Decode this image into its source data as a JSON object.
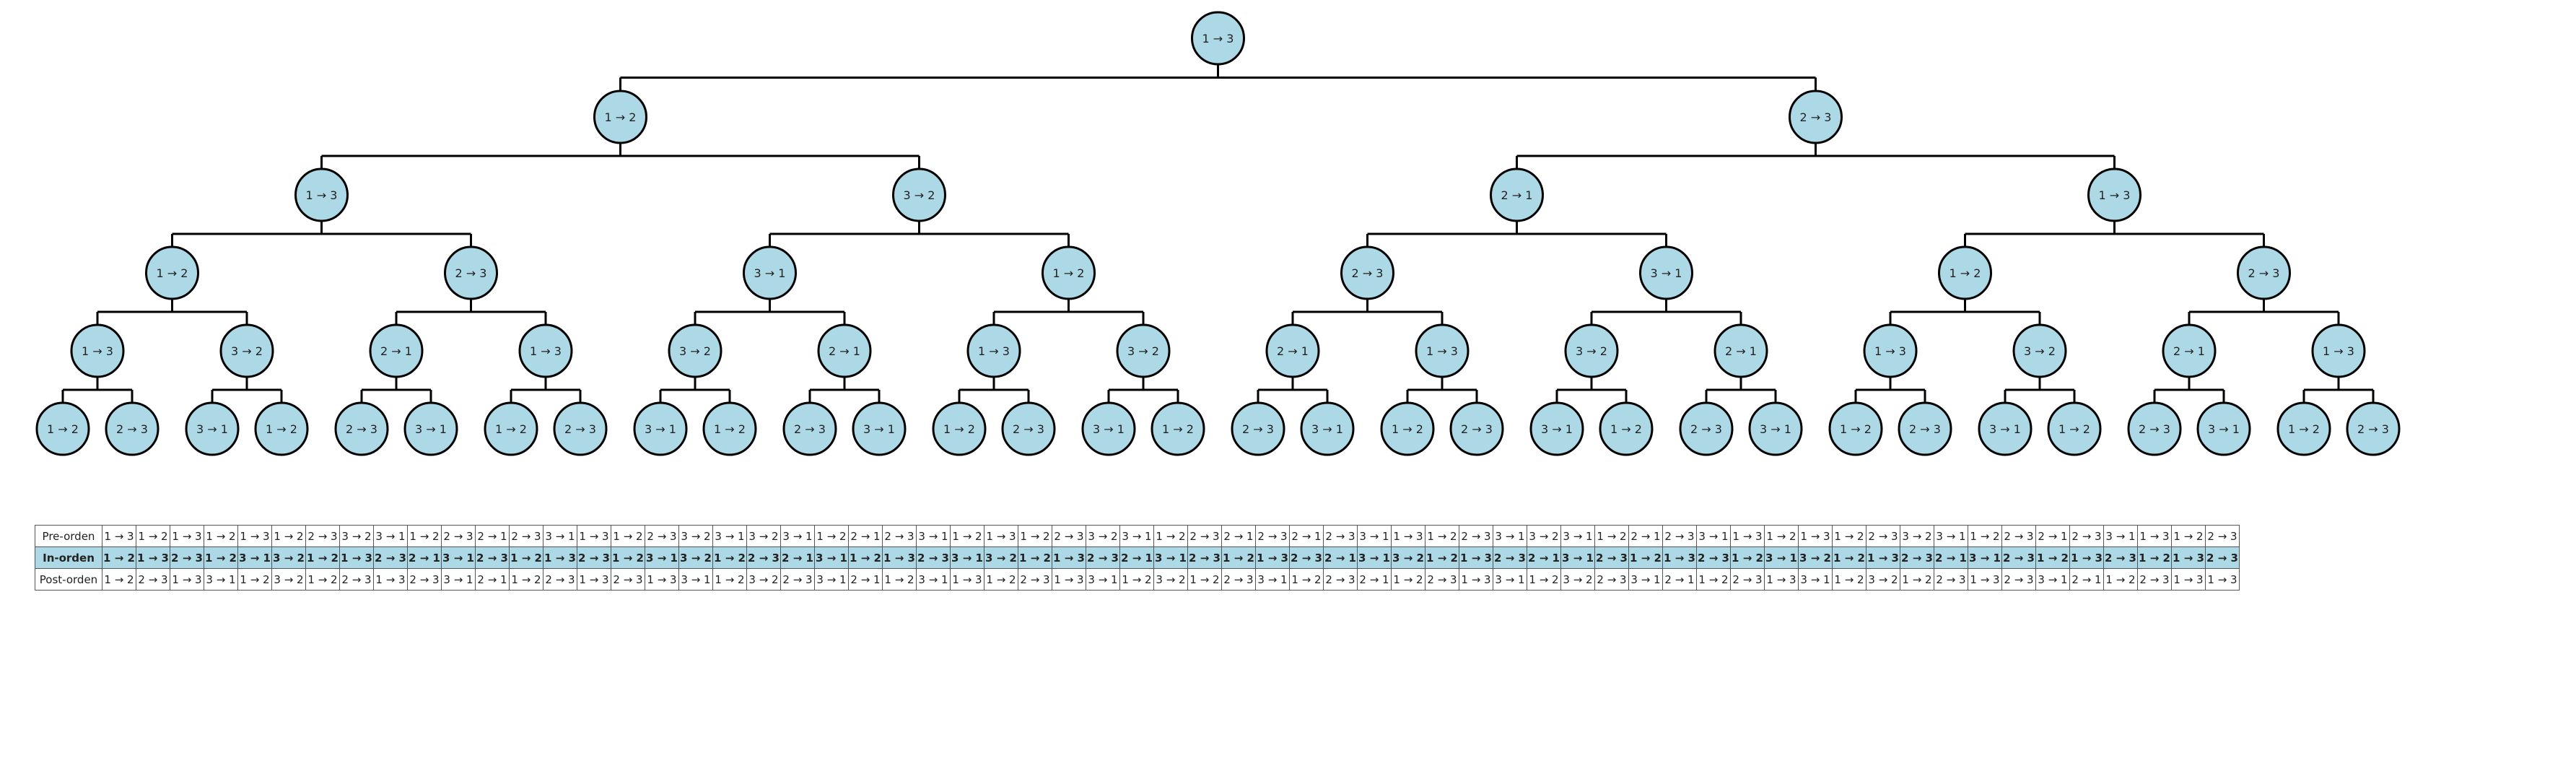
{
  "tree": {
    "root": "1 → 3",
    "levels": [
      [
        "1 → 3"
      ],
      [
        "1 → 2",
        "2 → 3"
      ],
      [
        "1 → 3",
        "3 → 2",
        "2 → 1",
        "1 → 3"
      ],
      [
        "1 → 2",
        "2 → 3",
        "3 → 1",
        "1 → 2",
        "2 → 3",
        "3 → 1",
        "1 → 2",
        "2 → 3"
      ],
      [
        "1 → 3",
        "3 → 2",
        "2 → 1",
        "1 → 3",
        "3 → 2",
        "2 → 1",
        "1 → 3",
        "3 → 2",
        "2 → 1",
        "1 → 3",
        "3 → 2",
        "2 → 1",
        "1 → 3",
        "3 → 2",
        "2 → 1",
        "1 → 3"
      ],
      [
        "1 → 2",
        "2 → 3",
        "3 → 1",
        "1 → 2",
        "2 → 3",
        "3 → 1",
        "1 → 2",
        "2 → 3",
        "3 → 1",
        "1 → 2",
        "2 → 3",
        "3 → 1",
        "1 → 2",
        "2 → 3",
        "3 → 1",
        "1 → 2",
        "2 → 3",
        "3 → 1",
        "1 → 2",
        "2 → 3",
        "3 → 1",
        "1 → 2",
        "2 → 3",
        "3 → 1",
        "1 → 2",
        "2 → 3",
        "3 → 1",
        "1 → 2",
        "2 → 3",
        "3 → 1",
        "1 → 2",
        "2 → 3"
      ]
    ]
  },
  "table": {
    "rows": [
      {
        "label": "Pre-orden",
        "cells": [
          "1 → 3",
          "1 → 2",
          "1 → 3",
          "1 → 2",
          "1 → 3",
          "1 → 2",
          "2 → 3",
          "3 → 2",
          "3 → 1",
          "1 → 2",
          "2 → 3",
          "2 → 1",
          "2 → 3",
          "3 → 1",
          "1 → 3",
          "1 → 2",
          "2 → 3",
          "3 → 2",
          "3 → 1",
          "3 → 2",
          "3 → 1",
          "1 → 2",
          "2 → 1",
          "2 → 3",
          "3 → 1",
          "1 → 2",
          "1 → 3",
          "1 → 2",
          "2 → 3",
          "3 → 2",
          "3 → 1",
          "1 → 2",
          "2 → 3",
          "2 → 1",
          "2 → 3",
          "2 → 1",
          "2 → 3",
          "3 → 1",
          "1 → 3",
          "1 → 2",
          "2 → 3",
          "3 → 1",
          "3 → 2",
          "3 → 1",
          "1 → 2",
          "2 → 1",
          "2 → 3",
          "3 → 1",
          "1 → 3",
          "1 → 2",
          "1 → 3",
          "1 → 2",
          "2 → 3",
          "3 → 2",
          "3 → 1",
          "1 → 2",
          "2 → 3",
          "2 → 1",
          "2 → 3",
          "3 → 1",
          "1 → 3",
          "1 → 2",
          "2 → 3"
        ]
      },
      {
        "label": "In-orden",
        "cells": [
          "1 → 2",
          "1 → 3",
          "2 → 3",
          "1 → 2",
          "3 → 1",
          "3 → 2",
          "1 → 2",
          "1 → 3",
          "2 → 3",
          "2 → 1",
          "3 → 1",
          "2 → 3",
          "1 → 2",
          "1 → 3",
          "2 → 3",
          "1 → 2",
          "3 → 1",
          "3 → 2",
          "1 → 2",
          "2 → 3",
          "2 → 1",
          "3 → 1",
          "1 → 2",
          "1 → 3",
          "2 → 3",
          "3 → 1",
          "3 → 2",
          "1 → 2",
          "1 → 3",
          "2 → 3",
          "2 → 1",
          "3 → 1",
          "2 → 3",
          "1 → 2",
          "1 → 3",
          "2 → 3",
          "2 → 1",
          "3 → 1",
          "3 → 2",
          "1 → 2",
          "1 → 3",
          "2 → 3",
          "2 → 1",
          "3 → 1",
          "2 → 3",
          "1 → 2",
          "1 → 3",
          "2 → 3",
          "1 → 2",
          "3 → 1",
          "3 → 2",
          "1 → 2",
          "1 → 3",
          "2 → 3",
          "2 → 1",
          "3 → 1",
          "2 → 3",
          "1 → 2",
          "1 → 3",
          "2 → 3",
          "1 → 2",
          "1 → 3",
          "2 → 3"
        ]
      },
      {
        "label": "Post-orden",
        "cells": [
          "1 → 2",
          "2 → 3",
          "1 → 3",
          "3 → 1",
          "1 → 2",
          "3 → 2",
          "1 → 2",
          "2 → 3",
          "1 → 3",
          "2 → 3",
          "3 → 1",
          "2 → 1",
          "1 → 2",
          "2 → 3",
          "1 → 3",
          "2 → 3",
          "1 → 3",
          "3 → 1",
          "1 → 2",
          "3 → 2",
          "2 → 3",
          "3 → 1",
          "2 → 1",
          "1 → 2",
          "3 → 1",
          "1 → 3",
          "1 → 2",
          "2 → 3",
          "1 → 3",
          "3 → 1",
          "1 → 2",
          "3 → 2",
          "1 → 2",
          "2 → 3",
          "3 → 1",
          "1 → 2",
          "2 → 3",
          "2 → 1",
          "1 → 2",
          "2 → 3",
          "1 → 3",
          "3 → 1",
          "1 → 2",
          "3 → 2",
          "2 → 3",
          "3 → 1",
          "2 → 1",
          "1 → 2",
          "2 → 3",
          "1 → 3",
          "3 → 1",
          "1 → 2",
          "3 → 2",
          "1 → 2",
          "2 → 3",
          "1 → 3",
          "2 → 3",
          "3 → 1",
          "2 → 1",
          "1 → 2",
          "2 → 3",
          "1 → 3",
          "1 → 3"
        ]
      }
    ]
  },
  "colors": {
    "node_fill": "#add8e6",
    "node_stroke": "#000000",
    "edge": "#000000",
    "text": "#222222"
  }
}
